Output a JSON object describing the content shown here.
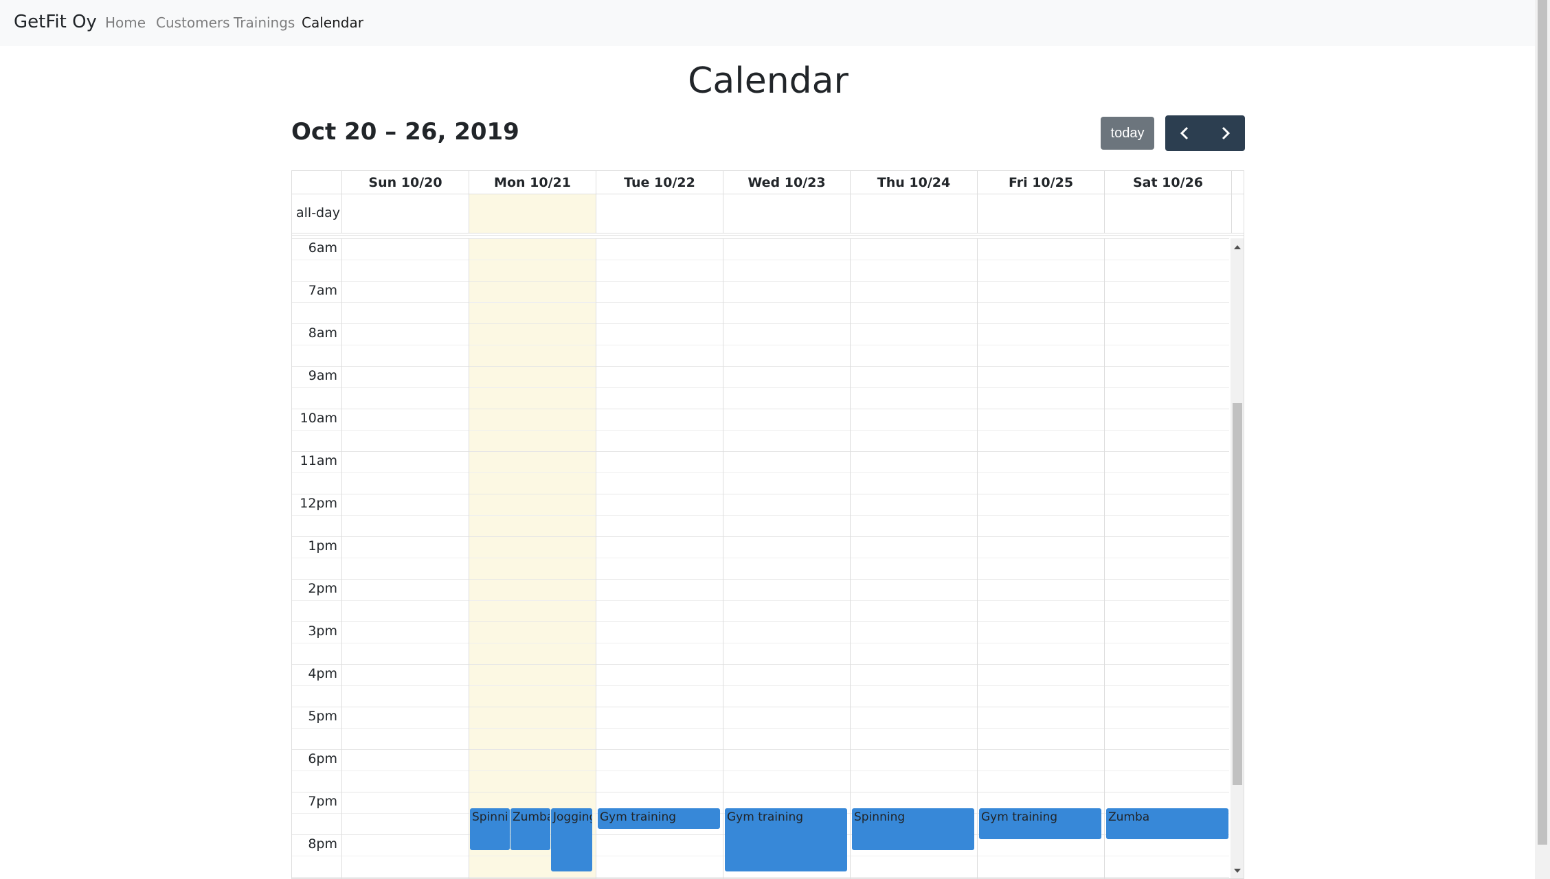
{
  "navbar": {
    "brand": "GetFit Oy",
    "links": [
      {
        "label": "Home",
        "active": false
      },
      {
        "label": "Customers",
        "active": false
      },
      {
        "label": "Trainings",
        "active": false
      },
      {
        "label": "Calendar",
        "active": true
      }
    ]
  },
  "page_title": "Calendar",
  "calendar": {
    "range_title": "Oct 20 – 26, 2019",
    "today_label": "today",
    "prev_icon": "chevron-left-icon",
    "next_icon": "chevron-right-icon",
    "all_day_label": "all-day",
    "today_column": "Mon 10/21",
    "days": [
      "Sun 10/20",
      "Mon 10/21",
      "Tue 10/22",
      "Wed 10/23",
      "Thu 10/24",
      "Fri 10/25",
      "Sat 10/26"
    ],
    "time_labels": [
      "6am",
      "7am",
      "8am",
      "9am",
      "10am",
      "11am",
      "12pm",
      "1pm",
      "2pm",
      "3pm",
      "4pm",
      "5pm",
      "6pm",
      "7pm",
      "8pm"
    ],
    "events": [
      {
        "title": "Spinning",
        "day": "Mon 10/21"
      },
      {
        "title": "Zumba",
        "day": "Mon 10/21"
      },
      {
        "title": "Jogging",
        "day": "Mon 10/21"
      },
      {
        "title": "Gym training",
        "day": "Tue 10/22"
      },
      {
        "title": "Gym training",
        "day": "Wed 10/23"
      },
      {
        "title": "Spinning",
        "day": "Thu 10/24"
      },
      {
        "title": "Gym training",
        "day": "Fri 10/25"
      },
      {
        "title": "Zumba",
        "day": "Sat 10/26"
      }
    ],
    "colors": {
      "event": "#3788d8",
      "today_highlight": "#fcf8e3",
      "nav_button": "#2c3e50",
      "today_button": "#6c757d"
    }
  }
}
